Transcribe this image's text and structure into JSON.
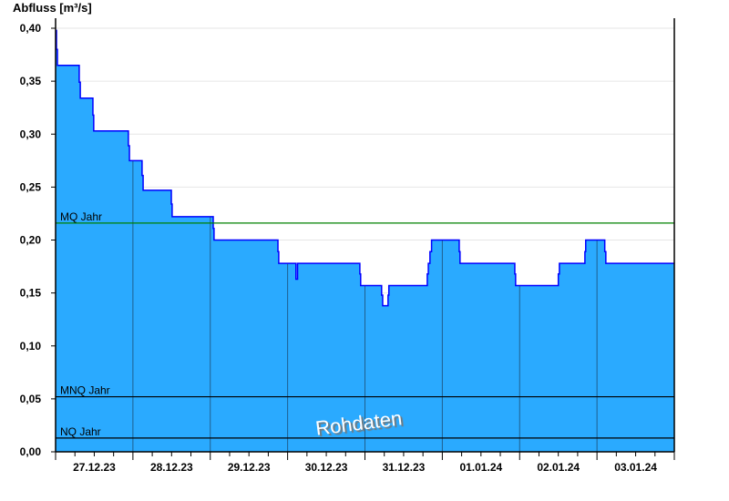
{
  "chart_data": {
    "type": "area",
    "ylabel": "Abfluss [m³/s]",
    "ylim": [
      0,
      0.4
    ],
    "yticks": [
      "0,00",
      "0,05",
      "0,10",
      "0,15",
      "0,20",
      "0,25",
      "0,30",
      "0,35",
      "0,40"
    ],
    "ytick_values": [
      0,
      0.05,
      0.1,
      0.15,
      0.2,
      0.25,
      0.3,
      0.35,
      0.4
    ],
    "xlim": [
      "2023-12-27T00:00",
      "2024-01-04T00:00"
    ],
    "xticks": [
      "27.12.23",
      "28.12.23",
      "29.12.23",
      "30.12.23",
      "31.12.23",
      "01.01.24",
      "02.01.24",
      "03.01.24"
    ],
    "grid": true,
    "fill_color": "#2aaaff",
    "line_color": "#0000ff",
    "series": [
      {
        "step": [
          [
            "2023-12-27T00:00",
            0.398
          ],
          [
            "2023-12-27T00:17",
            0.38
          ],
          [
            "2023-12-27T00:34",
            0.365
          ],
          [
            "2023-12-27T07:20",
            0.349
          ],
          [
            "2023-12-27T07:40",
            0.334
          ],
          [
            "2023-12-27T11:35",
            0.318
          ],
          [
            "2023-12-27T11:50",
            0.303
          ],
          [
            "2023-12-27T22:35",
            0.289
          ],
          [
            "2023-12-27T22:55",
            0.275
          ],
          [
            "2023-12-28T02:50",
            0.261
          ],
          [
            "2023-12-28T03:10",
            0.247
          ],
          [
            "2023-12-28T11:55",
            0.234
          ],
          [
            "2023-12-28T12:10",
            0.222
          ],
          [
            "2023-12-29T00:55",
            0.211
          ],
          [
            "2023-12-29T01:10",
            0.2
          ],
          [
            "2023-12-29T21:00",
            0.189
          ],
          [
            "2023-12-29T21:15",
            0.178
          ],
          [
            "2023-12-30T02:35",
            0.163
          ],
          [
            "2023-12-30T03:05",
            0.178
          ],
          [
            "2023-12-30T22:25",
            0.168
          ],
          [
            "2023-12-30T22:40",
            0.157
          ],
          [
            "2023-12-31T05:10",
            0.148
          ],
          [
            "2023-12-31T05:30",
            0.138
          ],
          [
            "2023-12-31T07:10",
            0.148
          ],
          [
            "2023-12-31T07:25",
            0.157
          ],
          [
            "2023-12-31T19:20",
            0.168
          ],
          [
            "2023-12-31T19:40",
            0.178
          ],
          [
            "2023-12-31T20:10",
            0.189
          ],
          [
            "2023-12-31T20:40",
            0.2
          ],
          [
            "2024-01-01T05:15",
            0.189
          ],
          [
            "2024-01-01T05:30",
            0.178
          ],
          [
            "2024-01-01T22:30",
            0.168
          ],
          [
            "2024-01-01T22:45",
            0.157
          ],
          [
            "2024-01-02T12:00",
            0.168
          ],
          [
            "2024-01-02T12:20",
            0.178
          ],
          [
            "2024-01-02T20:15",
            0.189
          ],
          [
            "2024-01-02T20:30",
            0.2
          ],
          [
            "2024-01-03T02:25",
            0.189
          ],
          [
            "2024-01-03T02:45",
            0.178
          ],
          [
            "2024-01-04T00:00",
            0.178
          ]
        ]
      }
    ],
    "reference_lines": [
      {
        "label": "MQ Jahr",
        "value": 0.216,
        "color": "#008000"
      },
      {
        "label": "MNQ Jahr",
        "value": 0.052,
        "color": "#000000"
      },
      {
        "label": "NQ Jahr",
        "value": 0.013,
        "color": "#000000"
      }
    ],
    "watermark": "Rohdaten"
  }
}
